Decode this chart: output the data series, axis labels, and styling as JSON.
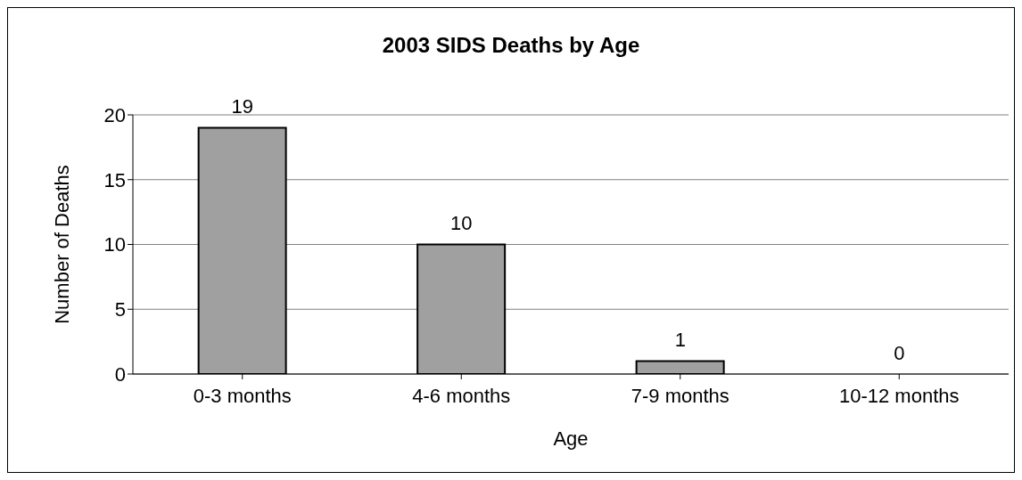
{
  "chart_data": {
    "type": "bar",
    "title": "2003 SIDS Deaths by Age",
    "xlabel": "Age",
    "ylabel": "Number of Deaths",
    "categories": [
      "0-3 months",
      "4-6 months",
      "7-9 months",
      "10-12 months"
    ],
    "values": [
      19,
      10,
      1,
      0
    ],
    "color": "#a0a0a0",
    "ylim": [
      0,
      20
    ],
    "yticks": [
      0,
      5,
      10,
      15,
      20
    ],
    "grid": "y",
    "data_labels": true,
    "legend": false
  }
}
